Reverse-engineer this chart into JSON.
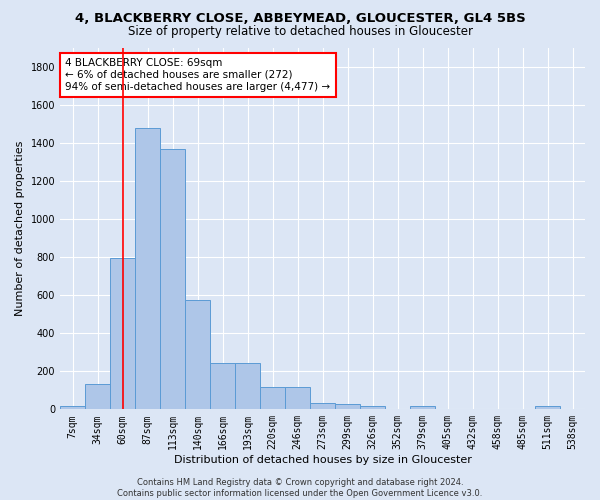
{
  "title": "4, BLACKBERRY CLOSE, ABBEYMEAD, GLOUCESTER, GL4 5BS",
  "subtitle": "Size of property relative to detached houses in Gloucester",
  "xlabel": "Distribution of detached houses by size in Gloucester",
  "ylabel": "Number of detached properties",
  "bar_values": [
    20,
    135,
    795,
    1475,
    1365,
    575,
    245,
    245,
    115,
    115,
    35,
    30,
    20,
    0,
    20,
    0,
    0,
    0,
    0,
    20,
    0
  ],
  "bar_labels": [
    "7sqm",
    "34sqm",
    "60sqm",
    "87sqm",
    "113sqm",
    "140sqm",
    "166sqm",
    "193sqm",
    "220sqm",
    "246sqm",
    "273sqm",
    "299sqm",
    "326sqm",
    "352sqm",
    "379sqm",
    "405sqm",
    "432sqm",
    "458sqm",
    "485sqm",
    "511sqm",
    "538sqm"
  ],
  "bar_color": "#aec6e8",
  "bar_edgecolor": "#5b9bd5",
  "vline_x": 2.0,
  "vline_color": "red",
  "annotation_text": "4 BLACKBERRY CLOSE: 69sqm\n← 6% of detached houses are smaller (272)\n94% of semi-detached houses are larger (4,477) →",
  "annotation_box_edgecolor": "red",
  "annotation_box_facecolor": "white",
  "ylim": [
    0,
    1900
  ],
  "yticks": [
    0,
    200,
    400,
    600,
    800,
    1000,
    1200,
    1400,
    1600,
    1800
  ],
  "footnote": "Contains HM Land Registry data © Crown copyright and database right 2024.\nContains public sector information licensed under the Open Government Licence v3.0.",
  "background_color": "#dce6f5",
  "grid_color": "white",
  "title_fontsize": 9.5,
  "subtitle_fontsize": 8.5,
  "ylabel_fontsize": 8,
  "xlabel_fontsize": 8,
  "tick_fontsize": 7,
  "footnote_fontsize": 6,
  "annotation_fontsize": 7.5
}
